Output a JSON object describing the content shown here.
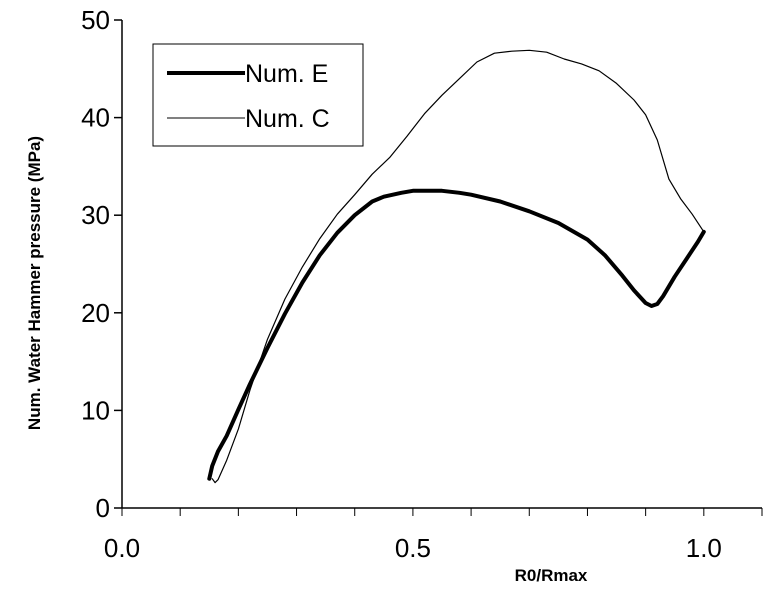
{
  "chart_data": {
    "type": "line",
    "title": "",
    "xlabel": "R0/Rmax",
    "ylabel": "Num. Water Hammer pressure (MPa)",
    "xlim": [
      0.0,
      1.1
    ],
    "ylim": [
      0,
      50
    ],
    "x_ticks": [
      "0.0",
      "0.5",
      "1.0"
    ],
    "x_minor_step": 0.1,
    "y_ticks": [
      "0",
      "10",
      "20",
      "30",
      "40",
      "50"
    ],
    "grid": false,
    "legend_position": "top-left",
    "series": [
      {
        "name": "Num. E",
        "color": "#000000",
        "style": "thick",
        "x": [
          0.15,
          0.155,
          0.165,
          0.18,
          0.2,
          0.22,
          0.25,
          0.28,
          0.31,
          0.34,
          0.37,
          0.4,
          0.43,
          0.45,
          0.48,
          0.5,
          0.52,
          0.55,
          0.58,
          0.6,
          0.65,
          0.7,
          0.75,
          0.8,
          0.83,
          0.86,
          0.88,
          0.9,
          0.91,
          0.92,
          0.93,
          0.95,
          0.97,
          0.99,
          1.0
        ],
        "y": [
          3.0,
          4.3,
          5.8,
          7.4,
          10.1,
          12.7,
          16.4,
          19.9,
          23.1,
          25.9,
          28.2,
          30.0,
          31.4,
          31.9,
          32.3,
          32.5,
          32.5,
          32.5,
          32.3,
          32.1,
          31.4,
          30.4,
          29.2,
          27.5,
          25.9,
          23.8,
          22.3,
          21.0,
          20.7,
          20.9,
          21.7,
          23.7,
          25.5,
          27.3,
          28.3
        ]
      },
      {
        "name": "Num. C",
        "color": "#000000",
        "style": "thin",
        "x": [
          0.155,
          0.16,
          0.165,
          0.18,
          0.2,
          0.22,
          0.25,
          0.28,
          0.31,
          0.34,
          0.37,
          0.4,
          0.43,
          0.46,
          0.49,
          0.52,
          0.55,
          0.58,
          0.61,
          0.64,
          0.67,
          0.7,
          0.73,
          0.76,
          0.79,
          0.82,
          0.85,
          0.88,
          0.9,
          0.92,
          0.94,
          0.96,
          0.98,
          1.0
        ],
        "y": [
          3.0,
          2.6,
          2.9,
          4.9,
          8.1,
          12.1,
          17.3,
          21.4,
          24.7,
          27.6,
          30.1,
          32.1,
          34.2,
          35.9,
          38.1,
          40.4,
          42.3,
          44.0,
          45.7,
          46.6,
          46.8,
          46.9,
          46.7,
          46.0,
          45.5,
          44.8,
          43.5,
          41.8,
          40.3,
          37.7,
          33.7,
          31.7,
          30.1,
          28.3
        ]
      }
    ]
  }
}
